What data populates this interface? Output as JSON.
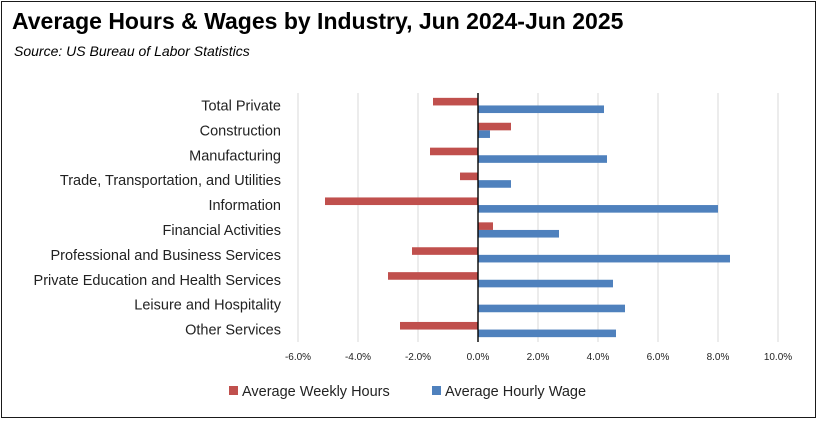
{
  "header": {
    "title": "Average Hours & Wages by Industry, Jun 2024-Jun 2025",
    "subtitle": "Source:  US Bureau of Labor Statistics"
  },
  "chart_data": {
    "type": "bar",
    "orientation": "horizontal",
    "title": "Average Hours & Wages by Industry, Jun 2024-Jun 2025",
    "subtitle": "Source:  US Bureau of Labor Statistics",
    "xlabel": "",
    "ylabel": "",
    "xlim": [
      -6.0,
      10.0
    ],
    "xticks": [
      -6,
      -4,
      -2,
      0,
      2,
      4,
      6,
      8,
      10
    ],
    "xtick_labels": [
      "-6.0%",
      "-4.0%",
      "-2.0%",
      "0.0%",
      "2.0%",
      "4.0%",
      "6.0%",
      "8.0%",
      "10.0%"
    ],
    "grid": true,
    "legend_position": "bottom",
    "categories": [
      "Total Private",
      "Construction",
      "Manufacturing",
      "Trade, Transportation, and Utilities",
      "Information",
      "Financial Activities",
      "Professional and Business Services",
      "Private Education and Health Services",
      "Leisure and Hospitality",
      "Other Services"
    ],
    "series": [
      {
        "name": "Average Weekly Hours",
        "color": "#c0504d",
        "values": [
          -1.5,
          1.1,
          -1.6,
          -0.6,
          -5.1,
          0.5,
          -2.2,
          -3.0,
          0.0,
          -2.6
        ]
      },
      {
        "name": "Average Hourly Wage",
        "color": "#4f81bd",
        "values": [
          4.2,
          0.4,
          4.3,
          1.1,
          8.0,
          2.7,
          8.4,
          4.5,
          4.9,
          4.6
        ]
      }
    ]
  }
}
